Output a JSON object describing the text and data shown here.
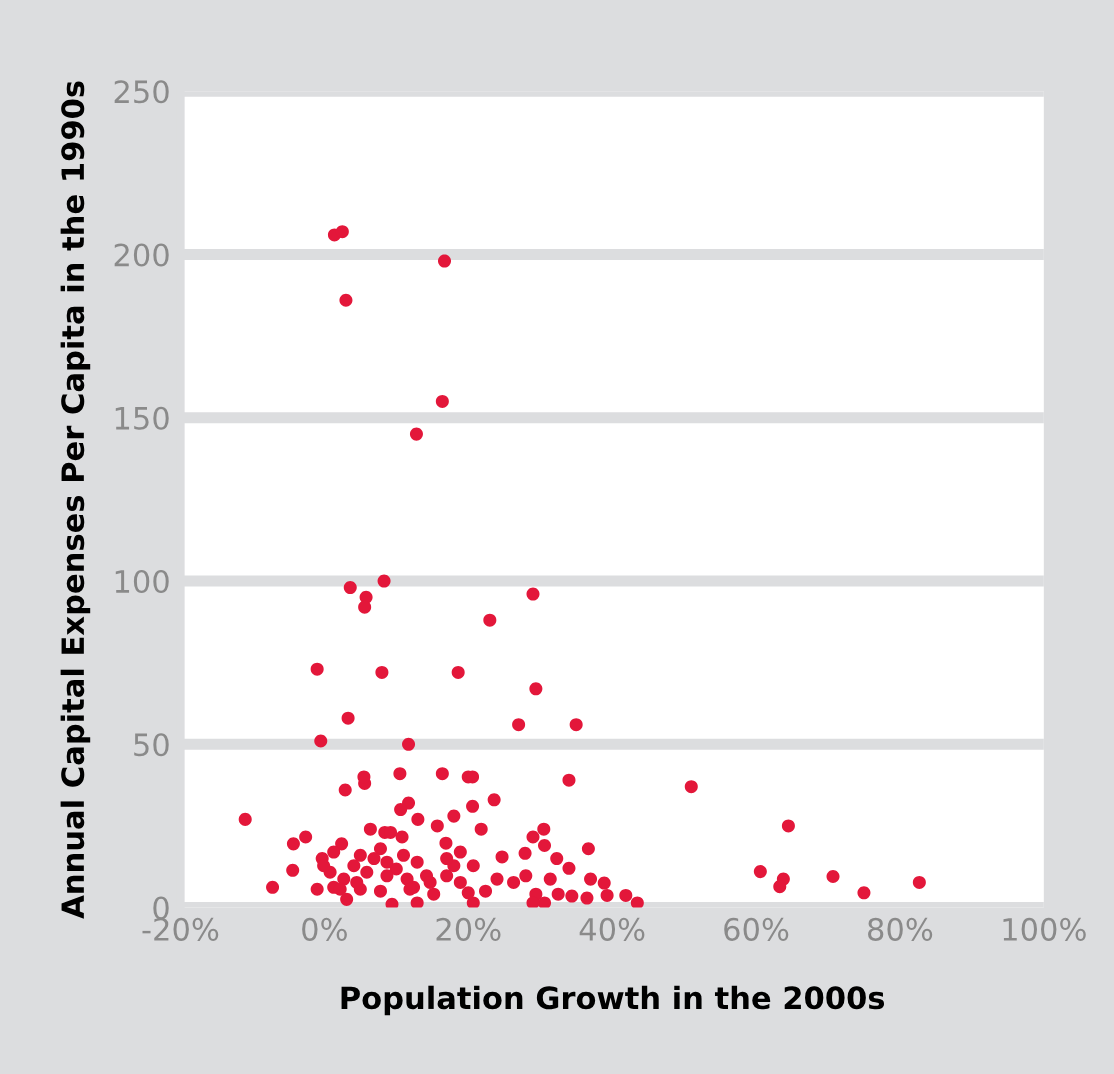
{
  "chart_data": {
    "type": "scatter",
    "xlabel": "Population Growth in the 2000s",
    "ylabel": "Annual Capital Expenses Per Capita in the 1990s",
    "series": [
      {
        "color": "#e3173a",
        "x": [
          1.4,
          2.5,
          16.7,
          3,
          16.4,
          12.8,
          8.3,
          3.6,
          5.8,
          5.6,
          29,
          23,
          -1,
          8,
          18.6,
          29.4,
          35,
          27,
          3.3,
          -0.5,
          11.7,
          20,
          5.6,
          34,
          51,
          64.5,
          -11,
          -4.3,
          -2.6,
          -4.4,
          -7.2,
          -1,
          2.9,
          5.5,
          10.5,
          16.4,
          20.6,
          11.7,
          10.6,
          13,
          15.7,
          18,
          20.6,
          23.6,
          21.8,
          6.4,
          8.4,
          9.2,
          2.4,
          -0.3,
          1.3,
          7.8,
          10.8,
          16.9,
          18.9,
          30.5,
          29,
          30.6,
          36.7,
          24.7,
          27.9,
          32.3,
          34,
          37,
          38.9,
          39.3,
          41.9,
          43.5,
          36.5,
          34.4,
          32.5,
          29.4,
          30.6,
          29,
          20.7,
          12.9,
          9.4,
          3.1,
          1.3,
          5,
          7.8,
          12.4,
          15.2,
          20,
          22.4,
          26.3,
          28,
          31.4,
          24,
          17,
          20.7,
          18,
          14.2,
          11.5,
          10,
          8.7,
          5.9,
          4.1,
          4.5,
          2.7,
          0.8,
          -0.1,
          6.9,
          8.7,
          12.9,
          17,
          14.7,
          18.9,
          11.9,
          5,
          11,
          2.2,
          60.6,
          63.8,
          63.3,
          70.7,
          75,
          82.7
        ],
        "values": [
          206,
          207,
          198,
          186,
          155,
          145,
          100,
          98,
          95,
          92,
          96,
          88,
          73,
          72,
          72,
          67,
          56,
          56,
          58,
          51,
          50,
          40,
          38,
          39,
          37,
          25,
          27,
          19.5,
          21.6,
          11.4,
          6.2,
          5.6,
          36,
          40,
          41,
          41,
          40,
          32,
          30,
          27,
          25,
          28,
          31,
          33,
          24,
          24,
          23,
          23,
          19.5,
          15,
          17,
          18,
          21.6,
          19.7,
          17,
          24,
          21.6,
          19,
          18,
          15.5,
          16.6,
          15,
          12,
          8.7,
          7.5,
          3.7,
          3.7,
          1.4,
          2.9,
          3.5,
          4.1,
          4.1,
          1.4,
          1.4,
          1.4,
          1.4,
          1,
          2.5,
          6.2,
          5.6,
          5,
          6.2,
          4.1,
          4.5,
          5,
          7.7,
          9.7,
          8.7,
          8.7,
          9.7,
          12.8,
          12.8,
          9.7,
          8.7,
          11.8,
          9.7,
          10.8,
          12.8,
          7.7,
          8.7,
          10.8,
          12.8,
          15,
          13.9,
          13.9,
          15,
          7.7,
          7.7,
          5.6,
          16,
          16,
          5.6,
          11,
          8.7,
          6.4,
          9.5,
          4.5,
          7.7
        ]
      }
    ],
    "xlim": [
      -20,
      100
    ],
    "xticks": [
      {
        "value": -20,
        "label": "-20%"
      },
      {
        "value": 0,
        "label": "0%"
      },
      {
        "value": 20,
        "label": "20%"
      },
      {
        "value": 40,
        "label": "40%"
      },
      {
        "value": 60,
        "label": "60%"
      },
      {
        "value": 80,
        "label": "80%"
      },
      {
        "value": 100,
        "label": "100%"
      }
    ],
    "ylim": [
      0,
      250
    ],
    "yticks": [
      0,
      50,
      100,
      150,
      200,
      250
    ],
    "grid": "y",
    "marker": "circle"
  }
}
